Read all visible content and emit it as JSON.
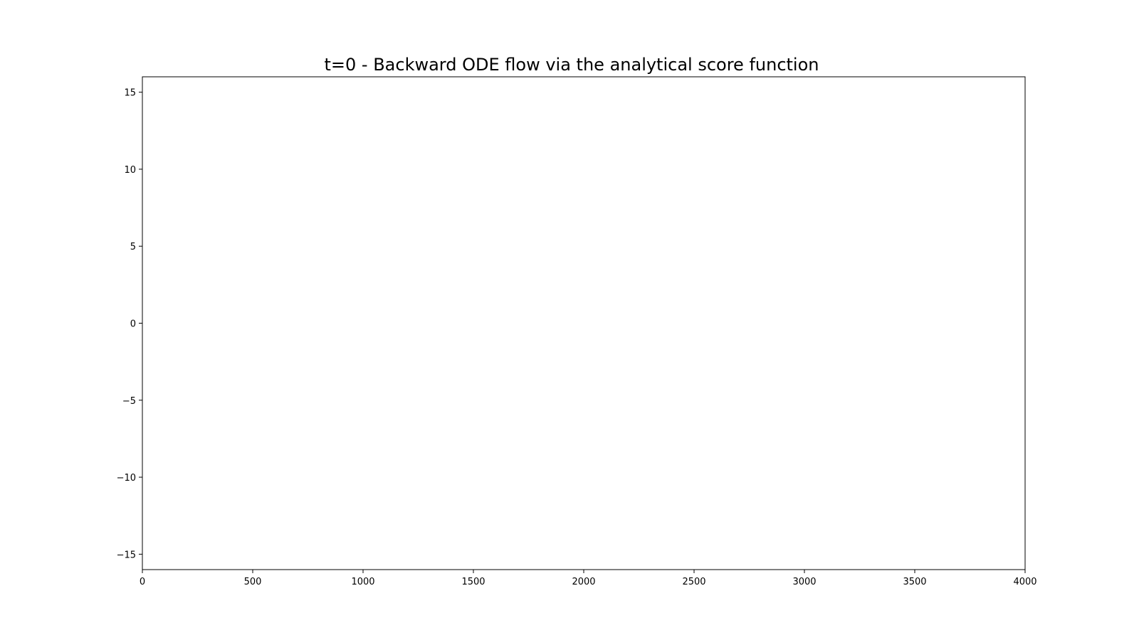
{
  "chart_data": {
    "type": "line",
    "title": "t=0 - Backward ODE flow via the analytical score function",
    "xlabel": "",
    "ylabel": "",
    "xlim": [
      0,
      4000
    ],
    "ylim": [
      -16,
      16
    ],
    "xticks": [
      0,
      500,
      1000,
      1500,
      2000,
      2500,
      3000,
      3500,
      4000
    ],
    "xtick_labels": [
      "0",
      "500",
      "1000",
      "1500",
      "2000",
      "2500",
      "3000",
      "3500",
      "4000"
    ],
    "yticks": [
      15,
      10,
      5,
      0,
      -5,
      -10,
      -15
    ],
    "ytick_labels": [
      "15",
      "10",
      "5",
      "0",
      "−5",
      "−10",
      "−15"
    ],
    "grid": false,
    "series": []
  }
}
